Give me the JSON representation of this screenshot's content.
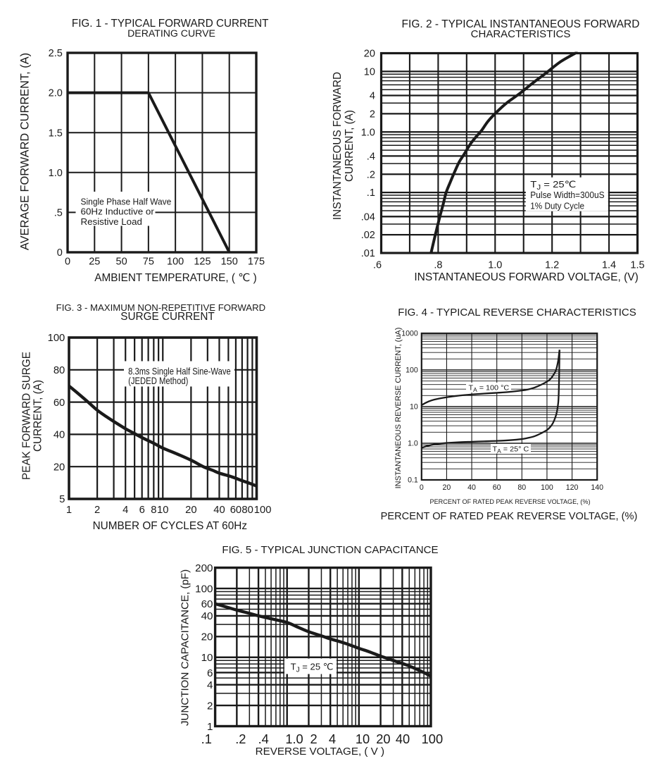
{
  "page": {
    "background": "#ffffff",
    "ink": "#1a1a1a"
  },
  "chart_data": [
    {
      "id": "fig1",
      "type": "line",
      "title_lines": [
        "FIG. 1 - TYPICAL FORWARD CURRENT",
        "DERATING CURVE"
      ],
      "xlabel": "AMBIENT TEMPERATURE, ( ℃ )",
      "ylabel_lines": [
        "AVERAGE FORWARD CURRENT, (A)"
      ],
      "x_scale": {
        "type": "linear",
        "min": 0,
        "max": 175
      },
      "y_scale": {
        "type": "linear",
        "min": 0,
        "max": 2.5
      },
      "x_grid_major": [
        0,
        25,
        50,
        75,
        100,
        125,
        150,
        175
      ],
      "x_grid_minor": [],
      "y_grid_major": [
        0,
        0.5,
        1.0,
        1.5,
        2.0,
        2.5
      ],
      "y_grid_minor": [],
      "x_ticks": [
        {
          "v": 0,
          "t": "0"
        },
        {
          "v": 25,
          "t": "25"
        },
        {
          "v": 50,
          "t": "50"
        },
        {
          "v": 75,
          "t": "75"
        },
        {
          "v": 100,
          "t": "100"
        },
        {
          "v": 125,
          "t": "125"
        },
        {
          "v": 150,
          "t": "150"
        },
        {
          "v": 175,
          "t": "175"
        }
      ],
      "y_ticks": [
        {
          "v": 2.5,
          "t": "2.5"
        },
        {
          "v": 2.0,
          "t": "2.0"
        },
        {
          "v": 1.5,
          "t": "1.5"
        },
        {
          "v": 1.0,
          "t": "1.0"
        },
        {
          "v": 0.5,
          "t": ".5"
        },
        {
          "v": 0,
          "t": "0"
        }
      ],
      "series": [
        {
          "name": "derating-curve",
          "smooth": false,
          "points": [
            [
              0,
              2.0
            ],
            [
              75,
              2.0
            ],
            [
              150,
              0
            ]
          ]
        }
      ],
      "annotations": [
        {
          "id": "fig1-note",
          "lines": [
            "Single Phase Half Wave",
            "60Hz Inductive or",
            "Resistive Load"
          ]
        }
      ]
    },
    {
      "id": "fig2",
      "type": "line",
      "title_lines": [
        "FIG. 2 - TYPICAL INSTANTANEOUS FORWARD",
        "CHARACTERISTICS"
      ],
      "xlabel": "INSTANTANEOUS FORWARD VOLTAGE, (V)",
      "ylabel_lines": [
        "INSTANTANEOUS FORWARD",
        "CURRENT, (A)"
      ],
      "x_scale": {
        "type": "linear",
        "min": 0.6,
        "max": 1.5
      },
      "y_scale": {
        "type": "log",
        "min": 0.01,
        "max": 20
      },
      "x_grid_major": [
        0.6,
        0.7,
        0.8,
        0.9,
        1.0,
        1.1,
        1.2,
        1.3,
        1.4,
        1.5
      ],
      "x_grid_minor": [],
      "y_grid_major": [
        0.01,
        0.02,
        0.04,
        0.1,
        0.2,
        0.4,
        1,
        2,
        4,
        10,
        20
      ],
      "y_grid_minor": [
        0.03,
        0.05,
        0.06,
        0.07,
        0.08,
        0.09,
        0.3,
        0.5,
        0.6,
        0.7,
        0.8,
        0.9,
        3,
        5,
        6,
        7,
        8,
        9
      ],
      "x_ticks": [
        {
          "v": 0.6,
          "t": ".6"
        },
        {
          "v": 0.8,
          "t": ".8"
        },
        {
          "v": 1.0,
          "t": "1.0"
        },
        {
          "v": 1.2,
          "t": "1.2"
        },
        {
          "v": 1.4,
          "t": "1.4"
        },
        {
          "v": 1.5,
          "t": "1.5"
        }
      ],
      "y_ticks": [
        {
          "v": 20,
          "t": "20"
        },
        {
          "v": 10,
          "t": "10"
        },
        {
          "v": 4,
          "t": "4"
        },
        {
          "v": 2,
          "t": "2"
        },
        {
          "v": 1,
          "t": "1.0"
        },
        {
          "v": 0.4,
          "t": ".4"
        },
        {
          "v": 0.2,
          "t": ".2"
        },
        {
          "v": 0.1,
          "t": ".1"
        },
        {
          "v": 0.04,
          "t": ".04"
        },
        {
          "v": 0.02,
          "t": ".02"
        },
        {
          "v": 0.01,
          "t": ".01"
        }
      ],
      "series": [
        {
          "name": "forward-characteristic",
          "smooth": true,
          "points": [
            [
              0.775,
              0.01
            ],
            [
              0.79,
              0.02
            ],
            [
              0.806,
              0.04
            ],
            [
              0.818,
              0.065
            ],
            [
              0.828,
              0.1
            ],
            [
              0.843,
              0.15
            ],
            [
              0.858,
              0.22
            ],
            [
              0.874,
              0.32
            ],
            [
              0.89,
              0.42
            ],
            [
              0.915,
              0.65
            ],
            [
              0.935,
              0.85
            ],
            [
              0.952,
              1.05
            ],
            [
              0.975,
              1.5
            ],
            [
              1.004,
              2.1
            ],
            [
              1.04,
              3.0
            ],
            [
              1.086,
              4.3
            ],
            [
              1.13,
              6.3
            ],
            [
              1.18,
              9.5
            ],
            [
              1.23,
              14.5
            ],
            [
              1.29,
              21
            ]
          ]
        }
      ],
      "annotations": [
        {
          "id": "fig2-conditions",
          "lines": [
            "T~J~ = 25℃",
            "Pulse Width=300uS",
            "1% Duty Cycle"
          ]
        }
      ]
    },
    {
      "id": "fig3",
      "type": "line",
      "title_lines": [
        "FIG. 3 - MAXIMUM NON-REPETITIVE FORWARD",
        "SURGE CURRENT"
      ],
      "xlabel": "NUMBER OF CYCLES AT 60Hz",
      "ylabel_lines": [
        "PEAK FORWARD SURGE",
        "CURRENT, (A)"
      ],
      "x_scale": {
        "type": "log",
        "min": 1,
        "max": 100
      },
      "y_scale": {
        "type": "segmented",
        "stops": [
          [
            100,
            0
          ],
          [
            80,
            0.2
          ],
          [
            60,
            0.4
          ],
          [
            40,
            0.6
          ],
          [
            20,
            0.8
          ],
          [
            5,
            1.0
          ]
        ]
      },
      "x_grid_major": [
        1,
        2,
        3,
        4,
        5,
        6,
        7,
        8,
        9,
        10,
        20,
        30,
        40,
        50,
        60,
        70,
        80,
        90,
        100
      ],
      "x_grid_minor": [],
      "y_grid_major": [
        100,
        80,
        60,
        40,
        20,
        5
      ],
      "y_grid_minor": [],
      "x_ticks": [
        {
          "v": 1,
          "t": "1"
        },
        {
          "v": 2,
          "t": "2"
        },
        {
          "v": 4,
          "t": "4"
        },
        {
          "v": 6,
          "t": "6"
        },
        {
          "v": 8,
          "t": "8"
        },
        {
          "v": 10,
          "t": "10"
        },
        {
          "v": 20,
          "t": "20"
        },
        {
          "v": 40,
          "t": "40"
        },
        {
          "v": 60,
          "t": "60"
        },
        {
          "v": 80,
          "t": "80"
        },
        {
          "v": 100,
          "t": "100"
        }
      ],
      "y_ticks": [
        {
          "v": 100,
          "t": "100"
        },
        {
          "v": 80,
          "t": "80"
        },
        {
          "v": 60,
          "t": "60"
        },
        {
          "v": 40,
          "t": "40"
        },
        {
          "v": 20,
          "t": "20"
        },
        {
          "v": 5,
          "t": "5"
        }
      ],
      "series": [
        {
          "name": "surge-current",
          "smooth": true,
          "points": [
            [
              1,
              70
            ],
            [
              1.3,
              64.5
            ],
            [
              1.6,
              60
            ],
            [
              2,
              55
            ],
            [
              2.5,
              51
            ],
            [
              3,
              48
            ],
            [
              4,
              43.5
            ],
            [
              5,
              40.5
            ],
            [
              6,
              38
            ],
            [
              8,
              34.5
            ],
            [
              10,
              31.5
            ],
            [
              14,
              28
            ],
            [
              20,
              24
            ],
            [
              27,
              20
            ],
            [
              34,
              18.3
            ],
            [
              40,
              17
            ],
            [
              55,
              15.2
            ],
            [
              70,
              13.5
            ],
            [
              85,
              12.2
            ],
            [
              100,
              11
            ]
          ]
        }
      ],
      "annotations": [
        {
          "id": "fig3-method",
          "lines": [
            "8.3ms Single Half Sine-Wave",
            "(JEDED Method)"
          ]
        }
      ]
    },
    {
      "id": "fig4",
      "type": "line",
      "title_lines": [
        "FIG. 4 - TYPICAL REVERSE CHARACTERISTICS"
      ],
      "xlabel": "PERCENT OF RATED PEAK REVERSE VOLTAGE, (%)",
      "xlabel_small": "PERCENT OF RATED PEAK REVERSE VOLTAGE, (%)",
      "ylabel_lines": [
        "INSTANTANEOUS REVERSE CURRENT, (uA)"
      ],
      "x_scale": {
        "type": "linear",
        "min": 0,
        "max": 140
      },
      "y_scale": {
        "type": "log",
        "min": 0.1,
        "max": 1000
      },
      "x_grid_major": [
        0,
        20,
        40,
        60,
        80,
        100,
        120,
        140
      ],
      "x_grid_minor": [],
      "y_grid_major": [
        0.1,
        1,
        10,
        100,
        1000
      ],
      "y_grid_minor": [
        0.2,
        0.3,
        0.4,
        0.5,
        0.6,
        0.7,
        0.8,
        0.9,
        2,
        3,
        4,
        5,
        6,
        7,
        8,
        9,
        20,
        30,
        40,
        50,
        60,
        70,
        80,
        90,
        200,
        300,
        400,
        500,
        600,
        700,
        800,
        900
      ],
      "x_ticks": [
        {
          "v": 0,
          "t": "0"
        },
        {
          "v": 20,
          "t": "20"
        },
        {
          "v": 40,
          "t": "40"
        },
        {
          "v": 60,
          "t": "60"
        },
        {
          "v": 80,
          "t": "80"
        },
        {
          "v": 100,
          "t": "100"
        },
        {
          "v": 120,
          "t": "120"
        },
        {
          "v": 140,
          "t": "140"
        }
      ],
      "y_ticks": [
        {
          "v": 1000,
          "t": "1000"
        },
        {
          "v": 100,
          "t": "100"
        },
        {
          "v": 10,
          "t": "10"
        },
        {
          "v": 1,
          "t": "1.0"
        },
        {
          "v": 0.1,
          "t": "0.1"
        }
      ],
      "series": [
        {
          "name": "reverse-current-100c",
          "smooth": true,
          "points": [
            [
              0,
              11
            ],
            [
              5,
              13.5
            ],
            [
              10,
              15.5
            ],
            [
              20,
              18
            ],
            [
              30,
              20
            ],
            [
              40,
              21.5
            ],
            [
              50,
              22.7
            ],
            [
              60,
              23.8
            ],
            [
              70,
              25.2
            ],
            [
              80,
              27.5
            ],
            [
              85,
              29.5
            ],
            [
              90,
              33
            ],
            [
              95,
              39
            ],
            [
              100,
              48
            ],
            [
              103,
              58
            ],
            [
              105,
              72
            ],
            [
              107,
              95
            ],
            [
              108,
              125
            ],
            [
              109,
              185
            ],
            [
              109.6,
              270
            ],
            [
              110,
              355
            ]
          ]
        },
        {
          "name": "reverse-current-25c",
          "smooth": true,
          "points": [
            [
              0,
              0.75
            ],
            [
              5,
              0.85
            ],
            [
              10,
              0.93
            ],
            [
              15,
              0.98
            ],
            [
              20,
              1.02
            ],
            [
              30,
              1.07
            ],
            [
              40,
              1.1
            ],
            [
              50,
              1.13
            ],
            [
              60,
              1.16
            ],
            [
              70,
              1.21
            ],
            [
              80,
              1.3
            ],
            [
              85,
              1.4
            ],
            [
              90,
              1.55
            ],
            [
              95,
              1.85
            ],
            [
              100,
              2.3
            ],
            [
              103,
              2.9
            ],
            [
              105,
              3.7
            ],
            [
              107,
              5.5
            ],
            [
              108,
              7.5
            ],
            [
              109,
              13
            ],
            [
              109.4,
              25
            ],
            [
              109.7,
              70
            ],
            [
              109.9,
              180
            ],
            [
              110,
              355
            ]
          ]
        }
      ],
      "annotations": [
        {
          "id": "fig4-label-100c",
          "lines": [
            "T~A~ = 100 °C"
          ]
        },
        {
          "id": "fig4-label-25c",
          "lines": [
            "T~A~ = 25° C"
          ]
        }
      ]
    },
    {
      "id": "fig5",
      "type": "line",
      "title_lines": [
        "FIG. 5 - TYPICAL JUNCTION CAPACITANCE"
      ],
      "xlabel": "REVERSE VOLTAGE, ( V )",
      "ylabel_lines": [
        "JUNCTION CAPACITANCE, (pF)"
      ],
      "x_scale": {
        "type": "log",
        "min": 0.1,
        "max": 100
      },
      "y_scale": {
        "type": "log",
        "min": 1,
        "max": 200
      },
      "x_grid_major": [
        0.1,
        0.2,
        0.4,
        1,
        2,
        4,
        10,
        20,
        40,
        100
      ],
      "x_grid_minor": [
        0.3,
        0.5,
        0.6,
        0.7,
        0.8,
        0.9,
        3,
        5,
        6,
        7,
        8,
        9,
        30,
        50,
        60,
        70,
        80,
        90
      ],
      "y_grid_major": [
        1,
        2,
        4,
        6,
        10,
        20,
        40,
        60,
        100,
        200
      ],
      "y_grid_minor": [
        3,
        5,
        7,
        8,
        9,
        30,
        50,
        70,
        80,
        90
      ],
      "x_ticks": [
        {
          "v": 0.1,
          "t": ".1"
        },
        {
          "v": 0.2,
          "t": ".2"
        },
        {
          "v": 0.4,
          "t": ".4"
        },
        {
          "v": 1,
          "t": "1.0"
        },
        {
          "v": 2,
          "t": "2"
        },
        {
          "v": 4,
          "t": "4"
        },
        {
          "v": 10,
          "t": "10"
        },
        {
          "v": 20,
          "t": "20"
        },
        {
          "v": 40,
          "t": "40"
        },
        {
          "v": 100,
          "t": "100"
        }
      ],
      "y_ticks": [
        {
          "v": 200,
          "t": "200"
        },
        {
          "v": 100,
          "t": "100"
        },
        {
          "v": 60,
          "t": "60"
        },
        {
          "v": 40,
          "t": "40"
        },
        {
          "v": 20,
          "t": "20"
        },
        {
          "v": 10,
          "t": "10"
        },
        {
          "v": 6,
          "t": "6"
        },
        {
          "v": 4,
          "t": "4"
        },
        {
          "v": 2,
          "t": "2"
        },
        {
          "v": 1,
          "t": "1"
        }
      ],
      "series": [
        {
          "name": "junction-capacitance",
          "smooth": true,
          "points": [
            [
              0.1,
              60
            ],
            [
              0.15,
              53
            ],
            [
              0.2,
              48.5
            ],
            [
              0.3,
              43.5
            ],
            [
              0.4,
              40
            ],
            [
              0.6,
              36.3
            ],
            [
              1,
              32
            ],
            [
              1.4,
              27.5
            ],
            [
              2,
              23.5
            ],
            [
              3,
              20.5
            ],
            [
              4,
              18.5
            ],
            [
              5.5,
              16.8
            ],
            [
              7,
              15.5
            ],
            [
              10,
              13.5
            ],
            [
              14,
              12
            ],
            [
              20,
              10.4
            ],
            [
              30,
              9
            ],
            [
              45,
              7.8
            ],
            [
              60,
              6.9
            ],
            [
              80,
              6
            ],
            [
              100,
              5.3
            ]
          ]
        }
      ],
      "annotations": [
        {
          "id": "fig5-tj",
          "lines": [
            "T~J~ = 25 ℃"
          ]
        }
      ]
    }
  ]
}
